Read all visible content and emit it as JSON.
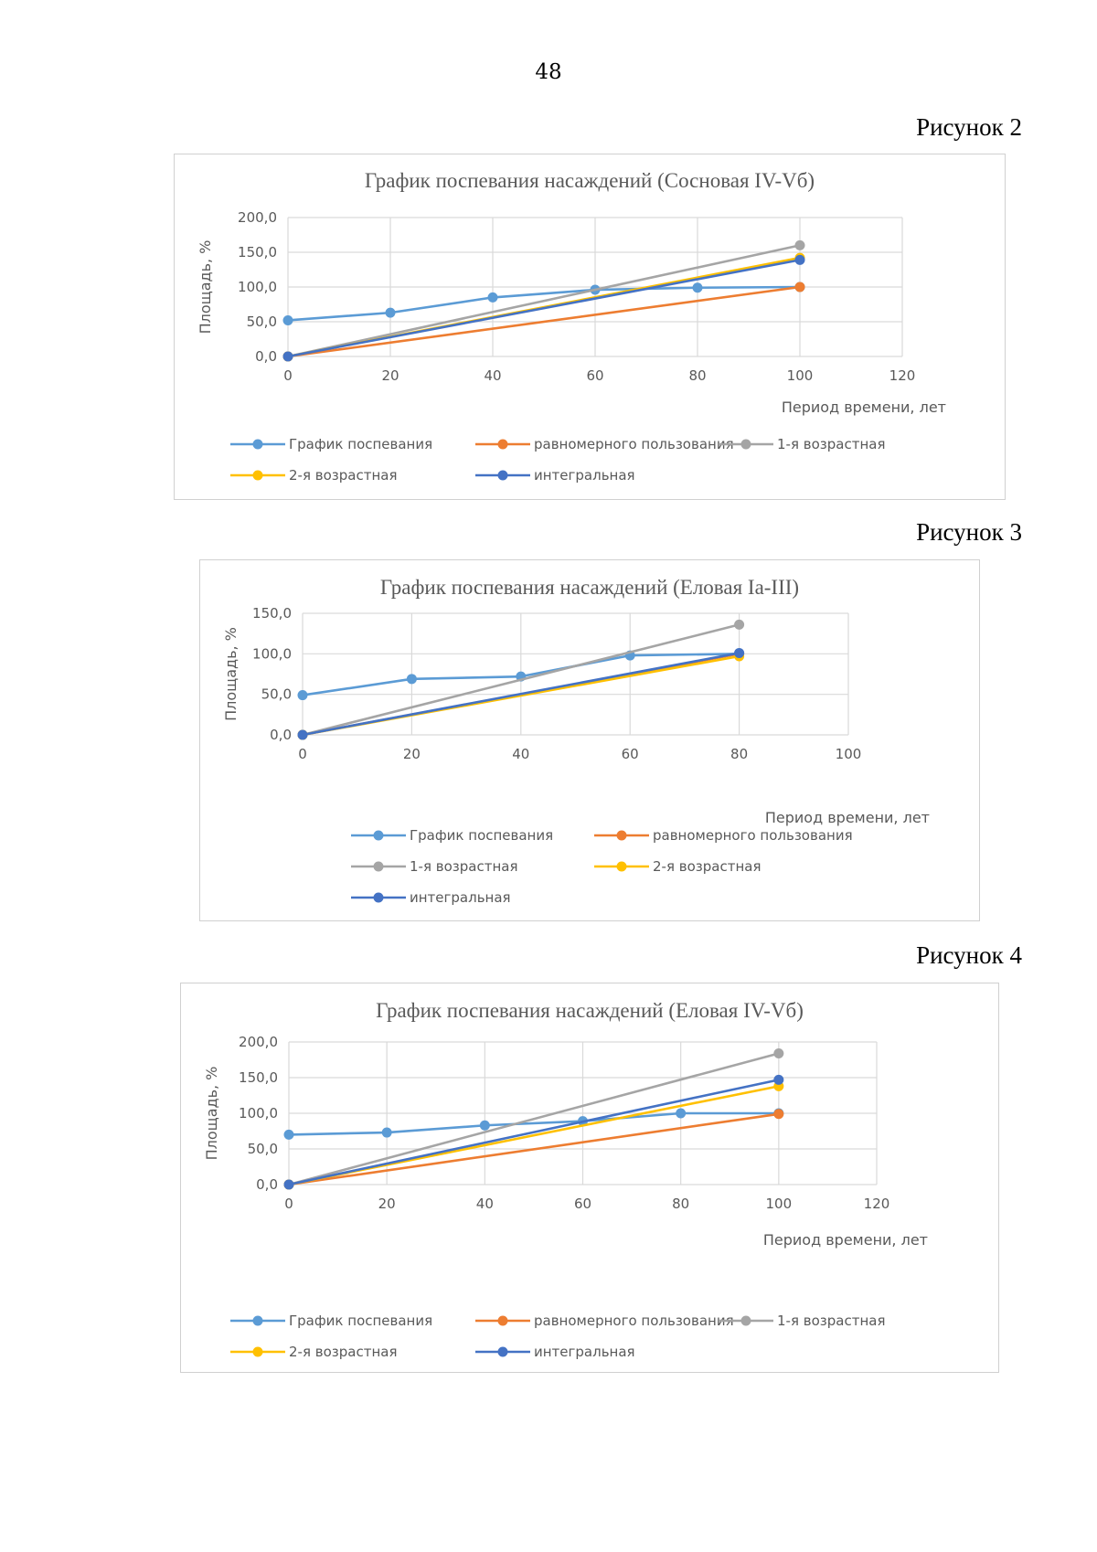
{
  "page_number": "48",
  "captions": [
    "Рисунок 2",
    "Рисунок 3",
    "Рисунок 4"
  ],
  "colors": {
    "schedule": "#5b9bd5",
    "uniform": "#ed7d31",
    "age1": "#a5a5a5",
    "age2": "#ffc000",
    "integral": "#4472c4",
    "grid": "#d9d9d9",
    "text": "#595959"
  },
  "chart_data": [
    {
      "type": "line",
      "title": "График поспевания насаждений (Сосновая IV-Vб)",
      "xlabel": "Период времени, лет",
      "ylabel": "Площадь, %",
      "xlim": [
        0,
        120
      ],
      "ylim": [
        0,
        200
      ],
      "x_ticks": [
        "0",
        "20",
        "40",
        "60",
        "80",
        "100",
        "120"
      ],
      "y_ticks": [
        "0,0",
        "50,0",
        "100,0",
        "150,0",
        "200,0"
      ],
      "grid": true,
      "legend_position": "bottom",
      "series": [
        {
          "name": "График поспевания",
          "color_key": "schedule",
          "x": [
            0,
            20,
            40,
            60,
            80,
            100
          ],
          "y": [
            52,
            63,
            85,
            96,
            99,
            100
          ]
        },
        {
          "name": "равномерного пользования",
          "color_key": "uniform",
          "x": [
            0,
            100
          ],
          "y": [
            0,
            100
          ]
        },
        {
          "name": "1-я возрастная",
          "color_key": "age1",
          "x": [
            0,
            100
          ],
          "y": [
            0,
            160
          ]
        },
        {
          "name": "2-я возрастная",
          "color_key": "age2",
          "x": [
            0,
            100
          ],
          "y": [
            0,
            142
          ]
        },
        {
          "name": "интегральная",
          "color_key": "integral",
          "x": [
            0,
            100
          ],
          "y": [
            0,
            139
          ]
        }
      ]
    },
    {
      "type": "line",
      "title": "График поспевания насаждений (Еловая Iа-III)",
      "xlabel": "Период времени, лет",
      "ylabel": "Площадь, %",
      "xlim": [
        0,
        100
      ],
      "ylim": [
        0,
        150
      ],
      "x_ticks": [
        "0",
        "20",
        "40",
        "60",
        "80",
        "100"
      ],
      "y_ticks": [
        "0,0",
        "50,0",
        "100,0",
        "150,0"
      ],
      "grid": true,
      "legend_position": "bottom",
      "series": [
        {
          "name": "График поспевания",
          "color_key": "schedule",
          "x": [
            0,
            20,
            40,
            60,
            80
          ],
          "y": [
            49,
            69,
            72,
            98,
            100
          ]
        },
        {
          "name": "равномерного пользования",
          "color_key": "uniform",
          "x": [
            0,
            80
          ],
          "y": [
            0,
            100
          ]
        },
        {
          "name": "1-я возрастная",
          "color_key": "age1",
          "x": [
            0,
            80
          ],
          "y": [
            0,
            136
          ]
        },
        {
          "name": "2-я возрастная",
          "color_key": "age2",
          "x": [
            0,
            80
          ],
          "y": [
            0,
            97
          ]
        },
        {
          "name": "интегральная",
          "color_key": "integral",
          "x": [
            0,
            80
          ],
          "y": [
            0,
            101
          ]
        }
      ]
    },
    {
      "type": "line",
      "title": "График поспевания насаждений (Еловая IV-Vб)",
      "xlabel": "Период времени, лет",
      "ylabel": "Площадь, %",
      "xlim": [
        0,
        120
      ],
      "ylim": [
        0,
        200
      ],
      "x_ticks": [
        "0",
        "20",
        "40",
        "60",
        "80",
        "100",
        "120"
      ],
      "y_ticks": [
        "0,0",
        "50,0",
        "100,0",
        "150,0",
        "200,0"
      ],
      "grid": true,
      "legend_position": "bottom",
      "series": [
        {
          "name": "График поспевания",
          "color_key": "schedule",
          "x": [
            0,
            20,
            40,
            60,
            80,
            100
          ],
          "y": [
            70,
            73,
            83,
            89,
            100,
            100
          ]
        },
        {
          "name": "равномерного пользования",
          "color_key": "uniform",
          "x": [
            0,
            100
          ],
          "y": [
            0,
            99
          ]
        },
        {
          "name": "1-я возрастная",
          "color_key": "age1",
          "x": [
            0,
            100
          ],
          "y": [
            0,
            184
          ]
        },
        {
          "name": "2-я возрастная",
          "color_key": "age2",
          "x": [
            0,
            100
          ],
          "y": [
            0,
            138
          ]
        },
        {
          "name": "интегральная",
          "color_key": "integral",
          "x": [
            0,
            100
          ],
          "y": [
            0,
            147
          ]
        }
      ]
    }
  ]
}
